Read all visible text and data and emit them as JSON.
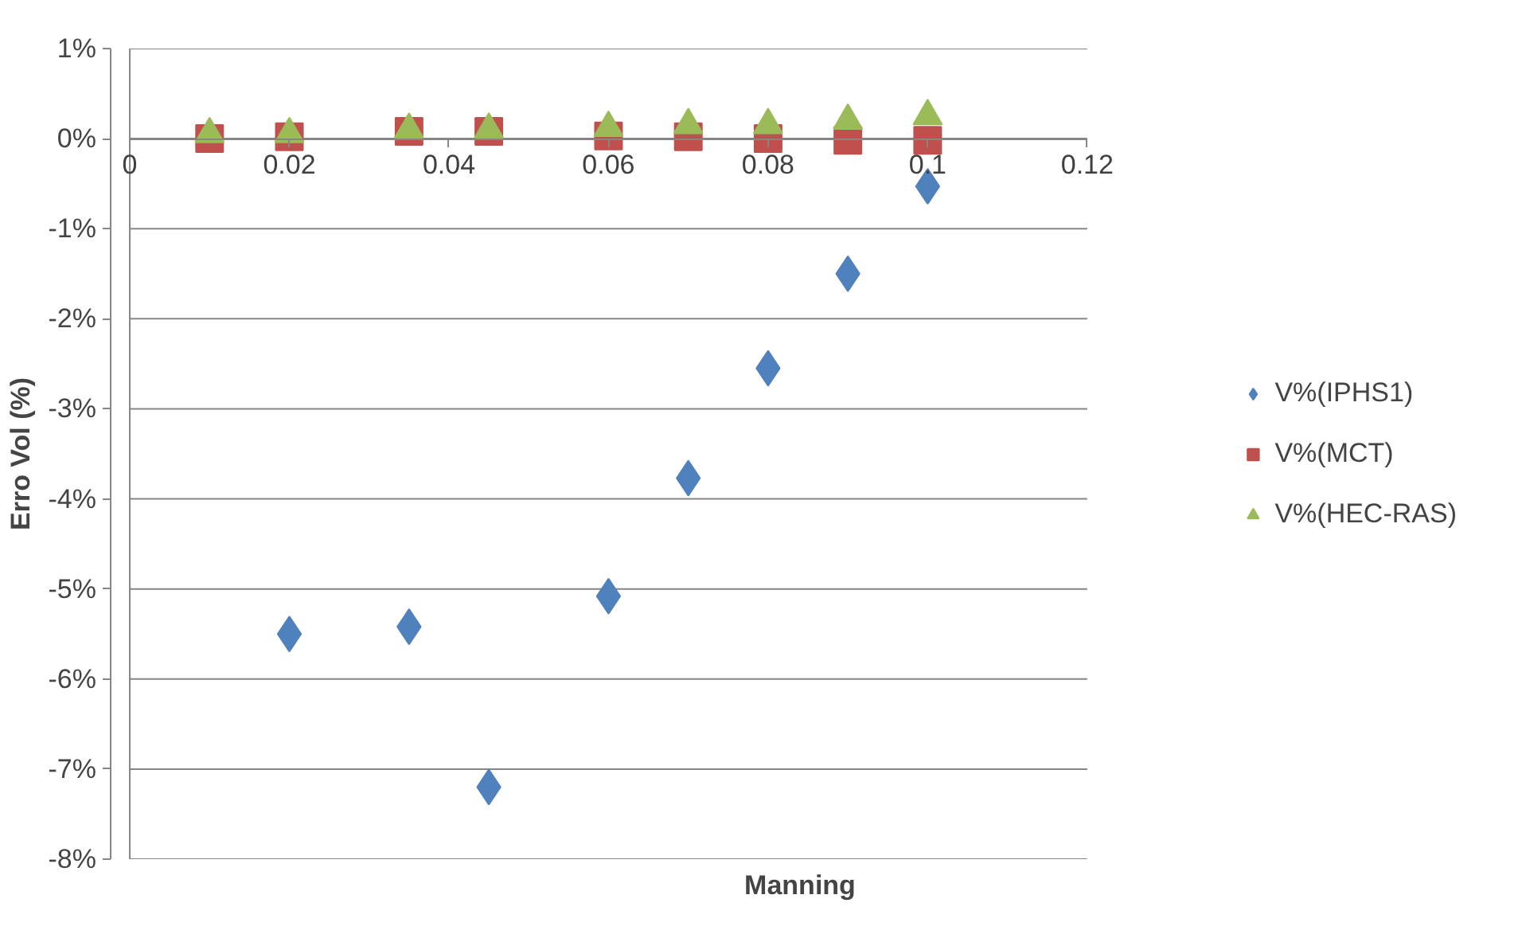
{
  "chart_data": {
    "type": "scatter",
    "xlabel": "Manning",
    "ylabel": "Erro Vol (%)",
    "xlim": [
      0,
      0.12
    ],
    "xticks": [
      0,
      0.02,
      0.04,
      0.06,
      0.08,
      {
        "value": 0.1,
        "label": "0.1"
      },
      0.12
    ],
    "ylim": [
      -8,
      1
    ],
    "yticks": [
      {
        "value": 1,
        "label": "1%"
      },
      {
        "value": 0,
        "label": "0%"
      },
      {
        "value": -1,
        "label": "-1%"
      },
      {
        "value": -2,
        "label": "-2%"
      },
      {
        "value": -3,
        "label": "-3%"
      },
      {
        "value": -4,
        "label": "-4%"
      },
      {
        "value": -5,
        "label": "-5%"
      },
      {
        "value": -6,
        "label": "-6%"
      },
      {
        "value": -7,
        "label": "-7%"
      },
      {
        "value": -8,
        "label": "-8%"
      }
    ],
    "grid": "y",
    "legend": "right",
    "series": [
      {
        "name": "V%(IPHS1)",
        "color": "#4f81bd",
        "marker": "diamond",
        "x": [
          0.02,
          0.035,
          0.045,
          0.06,
          0.07,
          0.08,
          0.09,
          0.1
        ],
        "values": [
          -5.5,
          -5.42,
          -7.2,
          -5.08,
          -3.77,
          -2.55,
          -1.5,
          -0.53
        ]
      },
      {
        "name": "V%(MCT)",
        "color": "#c0504d",
        "marker": "square",
        "x": [
          0.01,
          0.02,
          0.035,
          0.045,
          0.06,
          0.07,
          0.08,
          0.09,
          0.1
        ],
        "values": [
          0.0,
          0.02,
          0.08,
          0.08,
          0.03,
          0.02,
          0.0,
          -0.02,
          -0.02
        ]
      },
      {
        "name": "V%(HEC-RAS)",
        "color": "#9bbb59",
        "marker": "triangle",
        "x": [
          0.01,
          0.02,
          0.035,
          0.045,
          0.06,
          0.07,
          0.08,
          0.09,
          0.1
        ],
        "values": [
          0.05,
          0.05,
          0.1,
          0.1,
          0.12,
          0.15,
          0.15,
          0.2,
          0.25
        ]
      }
    ]
  }
}
